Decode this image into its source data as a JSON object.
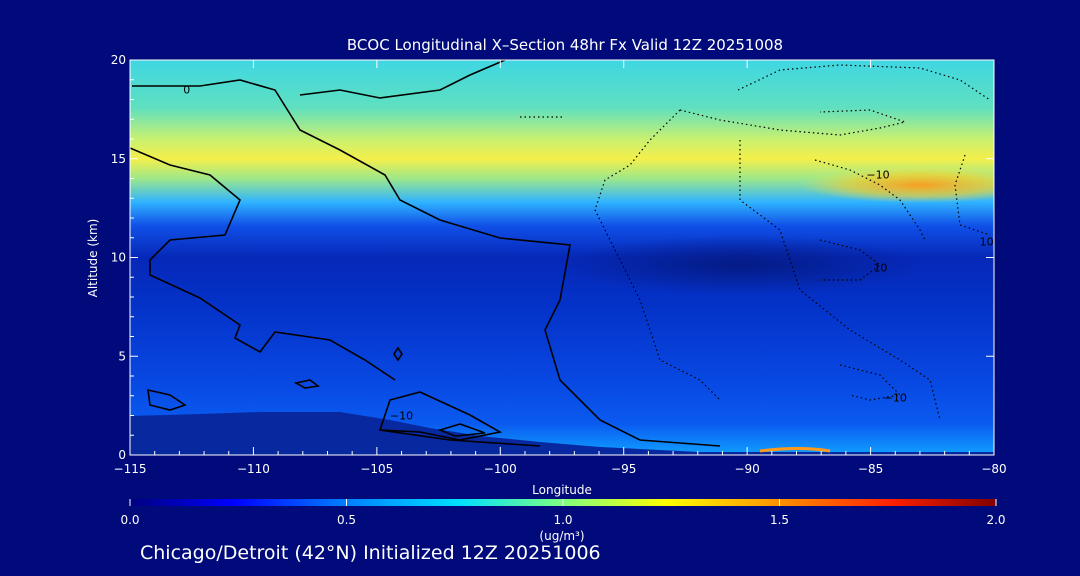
{
  "chart_data": {
    "type": "heatmap",
    "title": "BCOC Longitudinal X–Section 48hr  Fx Valid 12Z 20251008",
    "xlabel": "Longitude",
    "ylabel": "Altitude (km)",
    "xlim": [
      -115,
      -80
    ],
    "ylim": [
      0,
      20
    ],
    "x_ticks": [
      "−115",
      "−110",
      "−105",
      "−100",
      "−95",
      "−90",
      "−85",
      "−80"
    ],
    "y_ticks": [
      "0",
      "5",
      "10",
      "15",
      "20"
    ],
    "colorbar": {
      "min": 0.0,
      "max": 2.0,
      "ticks": [
        "0.0",
        "0.5",
        "1.0",
        "1.5",
        "2.0"
      ],
      "unit": "(ug/m³)"
    },
    "layers": [
      {
        "z": [
          0,
          0.5
        ],
        "value": 0.3
      },
      {
        "z": [
          0.5,
          2
        ],
        "value": 0.25
      },
      {
        "z": [
          2,
          5
        ],
        "value": 0.2
      },
      {
        "z": [
          5,
          9
        ],
        "value": 0.17
      },
      {
        "z": [
          9,
          11
        ],
        "value": 0.22
      },
      {
        "z": [
          11,
          12.5
        ],
        "value": 0.45
      },
      {
        "z": [
          12.5,
          14
        ],
        "value": 0.8
      },
      {
        "z": [
          14,
          16
        ],
        "value": 1.1
      },
      {
        "z": [
          16,
          18
        ],
        "value": 0.8
      },
      {
        "z": [
          18,
          20
        ],
        "value": 0.65
      }
    ],
    "contour_labels": [
      {
        "text": "0",
        "lon": -112.7,
        "alt": 18.5
      },
      {
        "text": "−10",
        "lon": -104.0,
        "alt": 2.0
      },
      {
        "text": "−10",
        "lon": -84.7,
        "alt": 14.2
      },
      {
        "text": "10",
        "lon": -80.3,
        "alt": 10.8
      },
      {
        "text": "10",
        "lon": -84.6,
        "alt": 9.5
      },
      {
        "text": "−10",
        "lon": -84.0,
        "alt": 2.9
      }
    ]
  },
  "footer": {
    "text": "Chicago/Detroit (42°N) Initialized 12Z 20251006"
  }
}
